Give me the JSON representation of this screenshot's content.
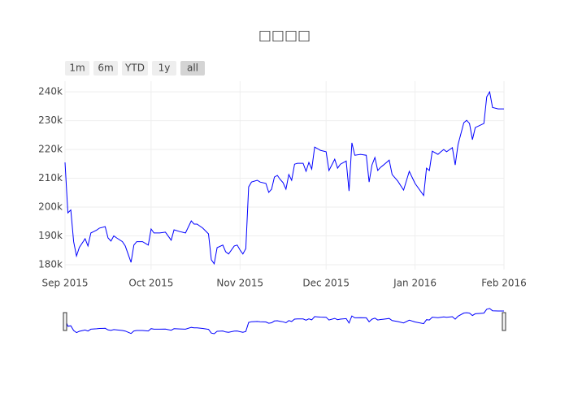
{
  "chart_data": {
    "type": "line",
    "title": "□□□□",
    "range_buttons": [
      "1m",
      "6m",
      "YTD",
      "1y",
      "all"
    ],
    "active_button": 4,
    "grid": true,
    "range_slider": true,
    "color": "#0000ff",
    "xlim": [
      "2015-09-01",
      "2016-02-01"
    ],
    "xticks": [
      {
        "value": "2015-09-01",
        "label": "Sep 2015"
      },
      {
        "value": "2015-10-01",
        "label": "Oct 2015"
      },
      {
        "value": "2015-11-01",
        "label": "Nov 2015"
      },
      {
        "value": "2015-12-01",
        "label": "Dec 2015"
      },
      {
        "value": "2016-01-01",
        "label": "Jan 2016"
      },
      {
        "value": "2016-02-01",
        "label": "Feb 2016"
      }
    ],
    "ylim": [
      178300,
      243700
    ],
    "yticks": [
      {
        "value": 180000,
        "label": "180k"
      },
      {
        "value": 190000,
        "label": "190k"
      },
      {
        "value": 200000,
        "label": "200k"
      },
      {
        "value": 210000,
        "label": "210k"
      },
      {
        "value": 220000,
        "label": "220k"
      },
      {
        "value": 230000,
        "label": "230k"
      },
      {
        "value": 240000,
        "label": "240k"
      }
    ],
    "x": [
      "2015-09-01",
      "2015-09-02",
      "2015-09-03",
      "2015-09-04",
      "2015-09-05",
      "2015-09-06",
      "2015-09-08",
      "2015-09-09",
      "2015-09-10",
      "2015-09-11",
      "2015-09-12",
      "2015-09-13",
      "2015-09-15",
      "2015-09-16",
      "2015-09-17",
      "2015-09-18",
      "2015-09-19",
      "2015-09-21",
      "2015-09-22",
      "2015-09-24",
      "2015-09-25",
      "2015-09-26",
      "2015-09-28",
      "2015-09-30",
      "2015-10-01",
      "2015-10-02",
      "2015-10-04",
      "2015-10-06",
      "2015-10-08",
      "2015-10-09",
      "2015-10-11",
      "2015-10-13",
      "2015-10-15",
      "2015-10-16",
      "2015-10-17",
      "2015-10-19",
      "2015-10-21",
      "2015-10-22",
      "2015-10-23",
      "2015-10-24",
      "2015-10-26",
      "2015-10-27",
      "2015-10-28",
      "2015-10-30",
      "2015-10-31",
      "2015-11-01",
      "2015-11-02",
      "2015-11-03",
      "2015-11-04",
      "2015-11-05",
      "2015-11-07",
      "2015-11-08",
      "2015-11-10",
      "2015-11-11",
      "2015-11-12",
      "2015-11-13",
      "2015-11-14",
      "2015-11-15",
      "2015-11-16",
      "2015-11-17",
      "2015-11-18",
      "2015-11-19",
      "2015-11-20",
      "2015-11-21",
      "2015-11-23",
      "2015-11-24",
      "2015-11-25",
      "2015-11-26",
      "2015-11-27",
      "2015-11-28",
      "2015-11-29",
      "2015-12-01",
      "2015-12-02",
      "2015-12-04",
      "2015-12-05",
      "2015-12-06",
      "2015-12-08",
      "2015-12-09",
      "2015-12-10",
      "2015-12-11",
      "2015-12-13",
      "2015-12-15",
      "2015-12-16",
      "2015-12-17",
      "2015-12-18",
      "2015-12-19",
      "2015-12-20",
      "2015-12-21",
      "2015-12-23",
      "2015-12-24",
      "2015-12-26",
      "2015-12-28",
      "2015-12-30",
      "2016-01-01",
      "2016-01-04",
      "2016-01-05",
      "2016-01-06",
      "2016-01-07",
      "2016-01-09",
      "2016-01-10",
      "2016-01-11",
      "2016-01-12",
      "2016-01-14",
      "2016-01-15",
      "2016-01-16",
      "2016-01-18",
      "2016-01-19",
      "2016-01-20",
      "2016-01-21",
      "2016-01-22",
      "2016-01-25",
      "2016-01-26",
      "2016-01-27",
      "2016-01-28",
      "2016-01-30",
      "2016-02-01"
    ],
    "values": [
      215500,
      198000,
      199000,
      188000,
      183000,
      186000,
      189000,
      186500,
      191000,
      191500,
      192000,
      192700,
      193200,
      189300,
      188200,
      190000,
      189300,
      188000,
      186500,
      180800,
      186800,
      188000,
      188000,
      186800,
      192400,
      191000,
      191000,
      191300,
      188500,
      192100,
      191500,
      191000,
      195200,
      194100,
      194100,
      192700,
      190700,
      181700,
      180300,
      185900,
      186800,
      184500,
      183700,
      186500,
      186800,
      185100,
      183700,
      185600,
      207000,
      208700,
      209300,
      208700,
      208200,
      205100,
      206200,
      210400,
      211000,
      209600,
      208500,
      206200,
      211300,
      209300,
      214900,
      215200,
      215200,
      212400,
      215500,
      213200,
      220800,
      220300,
      219700,
      219200,
      212700,
      216600,
      213500,
      214900,
      216000,
      205600,
      222300,
      218000,
      218300,
      218000,
      208700,
      214600,
      217200,
      212700,
      213800,
      214600,
      216300,
      211300,
      209000,
      205900,
      212400,
      208200,
      204000,
      213500,
      212700,
      219400,
      218300,
      219200,
      220000,
      219200,
      220600,
      214600,
      221700,
      229300,
      230100,
      229000,
      223400,
      227600,
      229000,
      238300,
      240000,
      234600,
      234100,
      234100
    ]
  }
}
